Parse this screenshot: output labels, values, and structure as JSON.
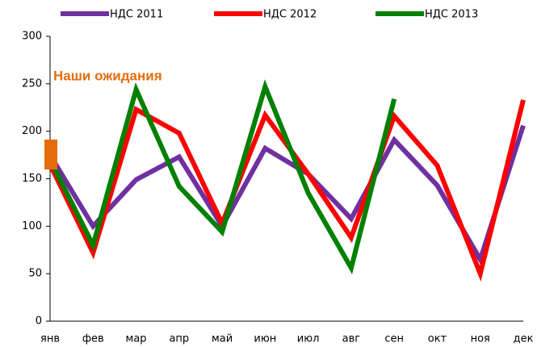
{
  "chart_data": {
    "type": "line",
    "annotation": "Наши ожидания",
    "categories": [
      "янв",
      "фев",
      "мар",
      "апр",
      "май",
      "июн",
      "июл",
      "авг",
      "сен",
      "окт",
      "ноя",
      "дек"
    ],
    "series": [
      {
        "name": "НДС 2011",
        "color": "#7030a0",
        "values": [
          175,
          100,
          149,
          173,
          100,
          182,
          155,
          108,
          191,
          143,
          65,
          206
        ]
      },
      {
        "name": "НДС 2012",
        "color": "#ff0000",
        "values": [
          165,
          72,
          223,
          198,
          103,
          217,
          155,
          88,
          216,
          164,
          50,
          233
        ]
      },
      {
        "name": "НДС 2013",
        "color": "#008000",
        "values": [
          170,
          80,
          244,
          142,
          94,
          247,
          135,
          56,
          234,
          null,
          null,
          null
        ]
      }
    ],
    "ylim": [
      0,
      300
    ],
    "yticks": [
      0,
      50,
      100,
      150,
      200,
      250,
      300
    ],
    "legend": "top",
    "grid": false
  }
}
